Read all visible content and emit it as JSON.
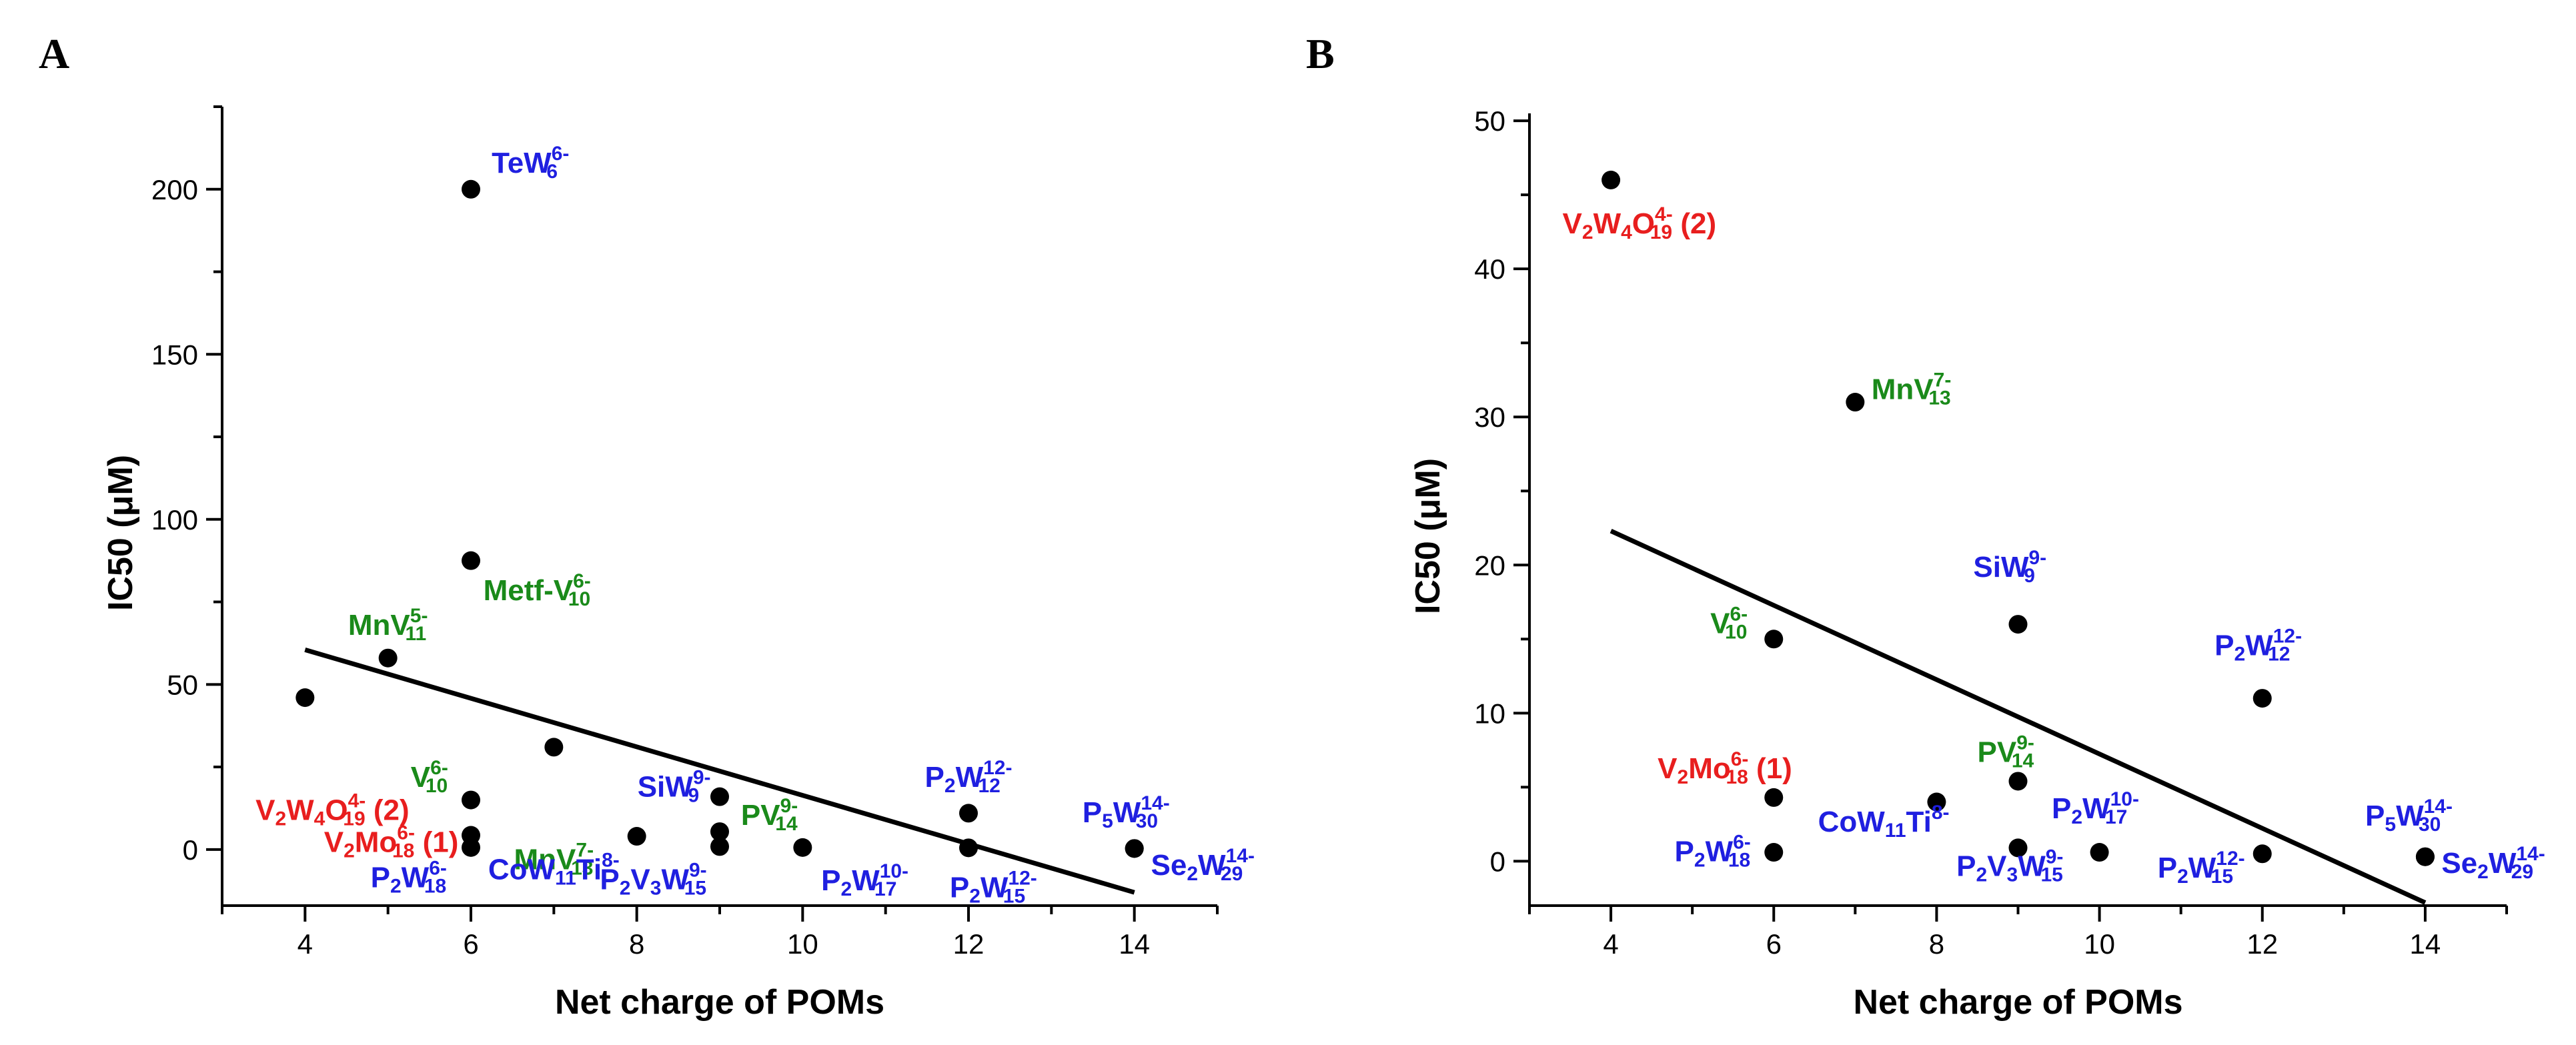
{
  "colors": {
    "blue": "#1f1fe0",
    "green": "#1a8a1a",
    "red": "#e81e1e",
    "black": "#000000"
  },
  "chart_data": [
    {
      "panel": "A",
      "type": "scatter",
      "title": "",
      "xlabel": "Net charge of POMs",
      "ylabel": "IC50 (μM)",
      "xlim": [
        3,
        15
      ],
      "ylim": [
        -17,
        225
      ],
      "xticks": [
        4,
        6,
        8,
        10,
        12,
        14
      ],
      "yticks": [
        0,
        50,
        100,
        150,
        200
      ],
      "fit_line": {
        "x": [
          4,
          14
        ],
        "y": [
          60.5,
          -13
        ]
      },
      "points": [
        {
          "x": 6,
          "y": 200,
          "color": "blue",
          "label": [
            {
              "t": "TeW"
            },
            {
              "t": "6-",
              "s": "sup"
            },
            {
              "t": "6",
              "s": "sub"
            }
          ],
          "lx": 0.25,
          "ly": 5,
          "anchor": "start"
        },
        {
          "x": 6,
          "y": 87.5,
          "color": "green",
          "label": [
            {
              "t": "Metf-V"
            },
            {
              "t": "6-",
              "s": "sup"
            },
            {
              "t": "10",
              "s": "sub"
            }
          ],
          "lx": 0.15,
          "ly": -12,
          "anchor": "start"
        },
        {
          "x": 5,
          "y": 58,
          "color": "green",
          "label": [
            {
              "t": "MnV"
            },
            {
              "t": "5-",
              "s": "sup"
            },
            {
              "t": "11",
              "s": "sub"
            }
          ],
          "lx": 0.0,
          "ly": 7,
          "anchor": "middle"
        },
        {
          "x": 4,
          "y": 46,
          "color": "red",
          "label": [
            {
              "t": "V"
            },
            {
              "t": "2",
              "s": "sub"
            },
            {
              "t": "W"
            },
            {
              "t": "4",
              "s": "sub"
            },
            {
              "t": "O"
            },
            {
              "t": "4-",
              "s": "sup"
            },
            {
              "t": "19",
              "s": "sub"
            },
            {
              "t": " (2)"
            }
          ],
          "lx": 0.33,
          "ly": -37,
          "anchor": "middle"
        },
        {
          "x": 7,
          "y": 31,
          "color": "green",
          "label": [
            {
              "t": "MnV"
            },
            {
              "t": "7-",
              "s": "sup"
            },
            {
              "t": "13",
              "s": "sub"
            }
          ],
          "lx": 0.0,
          "ly": -37,
          "anchor": "middle"
        },
        {
          "x": 6,
          "y": 15,
          "color": "green",
          "label": [
            {
              "t": "V"
            },
            {
              "t": "6-",
              "s": "sup"
            },
            {
              "t": "10",
              "s": "sub"
            }
          ],
          "lx": -0.5,
          "ly": 4,
          "anchor": "middle"
        },
        {
          "x": 6,
          "y": 4.3,
          "color": "red",
          "label": [
            {
              "t": "V"
            },
            {
              "t": "2",
              "s": "sub"
            },
            {
              "t": "Mo"
            },
            {
              "t": "6-",
              "s": "sup"
            },
            {
              "t": "18",
              "s": "sub"
            },
            {
              "t": " (1)"
            }
          ],
          "lx": -0.15,
          "ly": -5,
          "anchor": "end"
        },
        {
          "x": 6,
          "y": 0.6,
          "color": "blue",
          "label": [
            {
              "t": "P"
            },
            {
              "t": "2",
              "s": "sub"
            },
            {
              "t": "W"
            },
            {
              "t": "6-",
              "s": "sup"
            },
            {
              "t": "18",
              "s": "sub"
            }
          ],
          "lx": -0.75,
          "ly": -12,
          "anchor": "middle"
        },
        {
          "x": 8,
          "y": 4,
          "color": "blue",
          "label": [
            {
              "t": "CoW"
            },
            {
              "t": "11",
              "s": "sub"
            },
            {
              "t": "Ti"
            },
            {
              "t": "8-",
              "s": "sup"
            }
          ],
          "lx": -1.0,
          "ly": -13,
          "anchor": "middle"
        },
        {
          "x": 9,
          "y": 16,
          "color": "blue",
          "label": [
            {
              "t": "SiW"
            },
            {
              "t": "9-",
              "s": "sup"
            },
            {
              "t": "9",
              "s": "sub"
            }
          ],
          "lx": -0.55,
          "ly": 0,
          "anchor": "middle"
        },
        {
          "x": 9,
          "y": 5.4,
          "color": "green",
          "label": [
            {
              "t": "PV"
            },
            {
              "t": "9-",
              "s": "sup"
            },
            {
              "t": "14",
              "s": "sub"
            }
          ],
          "lx": 0.6,
          "ly": 2,
          "anchor": "middle"
        },
        {
          "x": 9,
          "y": 0.9,
          "color": "blue",
          "label": [
            {
              "t": "P"
            },
            {
              "t": "2",
              "s": "sub"
            },
            {
              "t": "V"
            },
            {
              "t": "3",
              "s": "sub"
            },
            {
              "t": "W"
            },
            {
              "t": "9-",
              "s": "sup"
            },
            {
              "t": "15",
              "s": "sub"
            }
          ],
          "lx": -0.8,
          "ly": -13,
          "anchor": "middle"
        },
        {
          "x": 10,
          "y": 0.6,
          "color": "blue",
          "label": [
            {
              "t": "P"
            },
            {
              "t": "2",
              "s": "sub"
            },
            {
              "t": "W"
            },
            {
              "t": "10-",
              "s": "sup"
            },
            {
              "t": "17",
              "s": "sub"
            }
          ],
          "lx": 0.75,
          "ly": -13,
          "anchor": "middle"
        },
        {
          "x": 12,
          "y": 11,
          "color": "blue",
          "label": [
            {
              "t": "P"
            },
            {
              "t": "2",
              "s": "sub"
            },
            {
              "t": "W"
            },
            {
              "t": "12-",
              "s": "sup"
            },
            {
              "t": "12",
              "s": "sub"
            }
          ],
          "lx": 0.0,
          "ly": 8,
          "anchor": "middle"
        },
        {
          "x": 12,
          "y": 0.5,
          "color": "blue",
          "label": [
            {
              "t": "P"
            },
            {
              "t": "2",
              "s": "sub"
            },
            {
              "t": "W"
            },
            {
              "t": "12-",
              "s": "sup"
            },
            {
              "t": "15",
              "s": "sub"
            }
          ],
          "lx": 0.3,
          "ly": -15,
          "anchor": "middle"
        },
        {
          "x": 14,
          "y": 0.3,
          "color": "blue",
          "label": [
            {
              "t": "P"
            },
            {
              "t": "5",
              "s": "sub"
            },
            {
              "t": "W"
            },
            {
              "t": "14-",
              "s": "sup"
            },
            {
              "t": "30",
              "s": "sub"
            }
          ],
          "lx": -0.1,
          "ly": 8,
          "anchor": "middle"
        },
        {
          "x": 14,
          "y": 0.3,
          "color": "blue",
          "label": [
            {
              "t": "Se"
            },
            {
              "t": "2",
              "s": "sub"
            },
            {
              "t": "W"
            },
            {
              "t": "14-",
              "s": "sup"
            },
            {
              "t": "29",
              "s": "sub"
            }
          ],
          "lx": 0.2,
          "ly": -8,
          "anchor": "start"
        }
      ]
    },
    {
      "panel": "B",
      "type": "scatter",
      "title": "",
      "xlabel": "Net charge of POMs",
      "ylabel": "IC50 (μM)",
      "xlim": [
        3,
        15
      ],
      "ylim": [
        -3,
        50.5
      ],
      "xticks": [
        4,
        6,
        8,
        10,
        12,
        14
      ],
      "yticks": [
        0,
        10,
        20,
        30,
        40,
        50
      ],
      "fit_line": {
        "x": [
          4,
          14
        ],
        "y": [
          22.3,
          -2.8
        ]
      },
      "points": [
        {
          "x": 4,
          "y": 46,
          "color": "red",
          "label": [
            {
              "t": "V"
            },
            {
              "t": "2",
              "s": "sub"
            },
            {
              "t": "W"
            },
            {
              "t": "4",
              "s": "sub"
            },
            {
              "t": "O"
            },
            {
              "t": "4-",
              "s": "sup"
            },
            {
              "t": "19",
              "s": "sub"
            },
            {
              "t": " (2)"
            }
          ],
          "lx": 0.35,
          "ly": -3.6,
          "anchor": "middle"
        },
        {
          "x": 7,
          "y": 31,
          "color": "green",
          "label": [
            {
              "t": "MnV"
            },
            {
              "t": "7-",
              "s": "sup"
            },
            {
              "t": "13",
              "s": "sub"
            }
          ],
          "lx": 0.2,
          "ly": 0.2,
          "anchor": "start"
        },
        {
          "x": 9,
          "y": 16,
          "color": "blue",
          "label": [
            {
              "t": "SiW"
            },
            {
              "t": "9-",
              "s": "sup"
            },
            {
              "t": "9",
              "s": "sub"
            }
          ],
          "lx": -0.1,
          "ly": 3.2,
          "anchor": "middle"
        },
        {
          "x": 6,
          "y": 15,
          "color": "green",
          "label": [
            {
              "t": "V"
            },
            {
              "t": "6-",
              "s": "sup"
            },
            {
              "t": "10",
              "s": "sub"
            }
          ],
          "lx": -0.55,
          "ly": 0.4,
          "anchor": "middle"
        },
        {
          "x": 12,
          "y": 11,
          "color": "blue",
          "label": [
            {
              "t": "P"
            },
            {
              "t": "2",
              "s": "sub"
            },
            {
              "t": "W"
            },
            {
              "t": "12-",
              "s": "sup"
            },
            {
              "t": "12",
              "s": "sub"
            }
          ],
          "lx": -0.05,
          "ly": 2.9,
          "anchor": "middle"
        },
        {
          "x": 6,
          "y": 4.3,
          "color": "red",
          "label": [
            {
              "t": "V"
            },
            {
              "t": "2",
              "s": "sub"
            },
            {
              "t": "Mo"
            },
            {
              "t": "6-",
              "s": "sup"
            },
            {
              "t": "18",
              "s": "sub"
            },
            {
              "t": " (1)"
            }
          ],
          "lx": -0.6,
          "ly": 1.3,
          "anchor": "middle"
        },
        {
          "x": 9,
          "y": 5.4,
          "color": "green",
          "label": [
            {
              "t": "PV"
            },
            {
              "t": "9-",
              "s": "sup"
            },
            {
              "t": "14",
              "s": "sub"
            }
          ],
          "lx": -0.15,
          "ly": 1.3,
          "anchor": "middle"
        },
        {
          "x": 8,
          "y": 4,
          "color": "blue",
          "label": [
            {
              "t": "CoW"
            },
            {
              "t": "11",
              "s": "sub"
            },
            {
              "t": "Ti"
            },
            {
              "t": "8-",
              "s": "sup"
            }
          ],
          "lx": -0.65,
          "ly": -2.0,
          "anchor": "middle"
        },
        {
          "x": 6,
          "y": 0.6,
          "color": "blue",
          "label": [
            {
              "t": "P"
            },
            {
              "t": "2",
              "s": "sub"
            },
            {
              "t": "W"
            },
            {
              "t": "6-",
              "s": "sup"
            },
            {
              "t": "18",
              "s": "sub"
            }
          ],
          "lx": -0.75,
          "ly": -0.6,
          "anchor": "middle"
        },
        {
          "x": 9,
          "y": 0.9,
          "color": "blue",
          "label": [
            {
              "t": "P"
            },
            {
              "t": "2",
              "s": "sub"
            },
            {
              "t": "V"
            },
            {
              "t": "3",
              "s": "sub"
            },
            {
              "t": "W"
            },
            {
              "t": "9-",
              "s": "sup"
            },
            {
              "t": "15",
              "s": "sub"
            }
          ],
          "lx": -0.1,
          "ly": -1.9,
          "anchor": "middle"
        },
        {
          "x": 10,
          "y": 0.6,
          "color": "blue",
          "label": [
            {
              "t": "P"
            },
            {
              "t": "2",
              "s": "sub"
            },
            {
              "t": "W"
            },
            {
              "t": "10-",
              "s": "sup"
            },
            {
              "t": "17",
              "s": "sub"
            }
          ],
          "lx": -0.05,
          "ly": 2.3,
          "anchor": "middle"
        },
        {
          "x": 12,
          "y": 0.5,
          "color": "blue",
          "label": [
            {
              "t": "P"
            },
            {
              "t": "2",
              "s": "sub"
            },
            {
              "t": "W"
            },
            {
              "t": "12-",
              "s": "sup"
            },
            {
              "t": "15",
              "s": "sub"
            }
          ],
          "lx": -0.75,
          "ly": -1.6,
          "anchor": "middle"
        },
        {
          "x": 14,
          "y": 0.3,
          "color": "blue",
          "label": [
            {
              "t": "P"
            },
            {
              "t": "5",
              "s": "sub"
            },
            {
              "t": "W"
            },
            {
              "t": "14-",
              "s": "sup"
            },
            {
              "t": "30",
              "s": "sub"
            }
          ],
          "lx": -0.2,
          "ly": 2.1,
          "anchor": "middle"
        },
        {
          "x": 14,
          "y": 0.3,
          "color": "blue",
          "label": [
            {
              "t": "Se"
            },
            {
              "t": "2",
              "s": "sub"
            },
            {
              "t": "W"
            },
            {
              "t": "14-",
              "s": "sup"
            },
            {
              "t": "29",
              "s": "sub"
            }
          ],
          "lx": 0.2,
          "ly": -1.1,
          "anchor": "start"
        }
      ]
    }
  ]
}
